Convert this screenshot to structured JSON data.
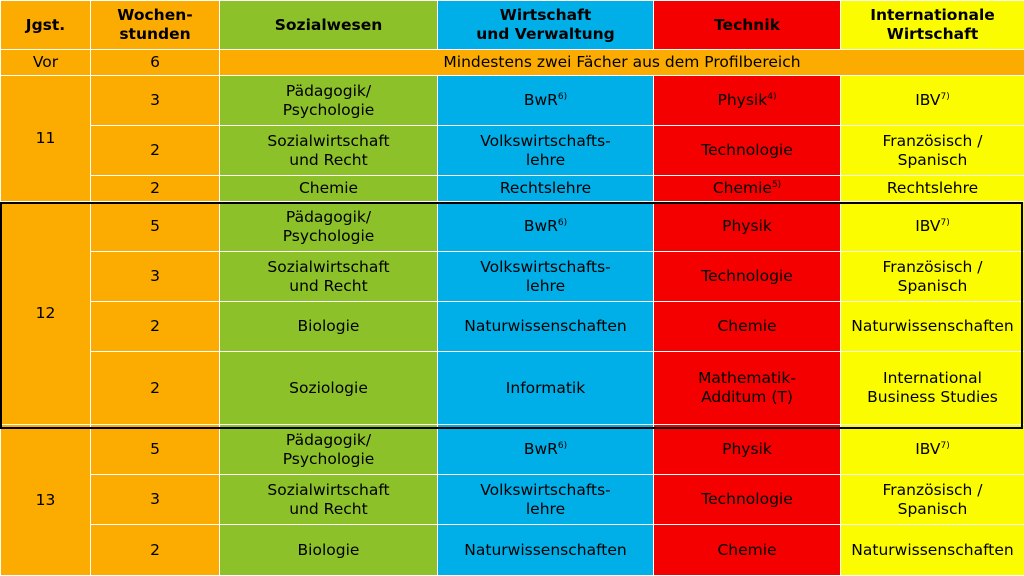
{
  "colors": {
    "jgst": "#fcac00",
    "wochenstunden": "#fcac00",
    "sozialwesen": "#8cc12a",
    "wirtschaft": "#00aee8",
    "technik": "#f40000",
    "int_wirtschaft": "#fcfc00",
    "grid_lines": "#ffffff",
    "highlight_border": "#000000"
  },
  "header": {
    "jgst_l1": "Jgst.",
    "hours_l1": "Wochen-",
    "hours_l2": "stunden",
    "sozialwesen": "Sozialwesen",
    "wirtschaft_l1": "Wirtschaft",
    "wirtschaft_l2": "und Verwaltung",
    "technik": "Technik",
    "intl_l1": "Internationale",
    "intl_l2": "Wirtschaft"
  },
  "vor": {
    "label": "Vor",
    "hours": "6",
    "text": "Mindestens zwei Fächer aus dem Profilbereich"
  },
  "grade11": {
    "label": "11",
    "rows": [
      {
        "hours": "3",
        "soz_l1": "Pädagogik/",
        "soz_l2": "Psychologie",
        "wirt": "BwR",
        "wirt_sup": "6)",
        "tech": "Physik",
        "tech_sup": "4)",
        "intl": "IBV",
        "intl_sup": "7)"
      },
      {
        "hours": "2",
        "soz_l1": "Sozialwirtschaft",
        "soz_l2": "und Recht",
        "wirt_l1": "Volkswirtschafts-",
        "wirt_l2": "lehre",
        "tech": "Technologie",
        "intl_l1": "Französisch /",
        "intl_l2": "Spanisch"
      },
      {
        "hours": "2",
        "soz": "Chemie",
        "wirt": "Rechtslehre",
        "tech": "Chemie",
        "tech_sup": "5)",
        "intl": "Rechtslehre"
      }
    ]
  },
  "grade12": {
    "label": "12",
    "rows": [
      {
        "hours": "5",
        "soz_l1": "Pädagogik/",
        "soz_l2": "Psychologie",
        "wirt": "BwR",
        "wirt_sup": "6)",
        "tech": "Physik",
        "intl": "IBV",
        "intl_sup": "7)"
      },
      {
        "hours": "3",
        "soz_l1": "Sozialwirtschaft",
        "soz_l2": "und Recht",
        "wirt_l1": "Volkswirtschafts-",
        "wirt_l2": "lehre",
        "tech": "Technologie",
        "intl_l1": "Französisch /",
        "intl_l2": "Spanisch"
      },
      {
        "hours": "2",
        "soz": "Biologie",
        "wirt": "Naturwissenschaften",
        "tech": "Chemie",
        "intl": "Naturwissenschaften"
      },
      {
        "hours": "2",
        "soz": "Soziologie",
        "wirt": "Informatik",
        "tech_l1": "Mathematik-",
        "tech_l2": "Additum (T)",
        "intl_l1": "International",
        "intl_l2": "Business Studies"
      }
    ]
  },
  "grade13": {
    "label": "13",
    "rows": [
      {
        "hours": "5",
        "soz_l1": "Pädagogik/",
        "soz_l2": "Psychologie",
        "wirt": "BwR",
        "wirt_sup": "6)",
        "tech": "Physik",
        "intl": "IBV",
        "intl_sup": "7)"
      },
      {
        "hours": "3",
        "soz_l1": "Sozialwirtschaft",
        "soz_l2": "und Recht",
        "wirt_l1": "Volkswirtschafts-",
        "wirt_l2": "lehre",
        "tech": "Technologie",
        "intl_l1": "Französisch /",
        "intl_l2": "Spanisch"
      },
      {
        "hours": "2",
        "soz": "Biologie",
        "wirt": "Naturwissenschaften",
        "tech": "Chemie",
        "intl": "Naturwissenschaften"
      }
    ]
  }
}
